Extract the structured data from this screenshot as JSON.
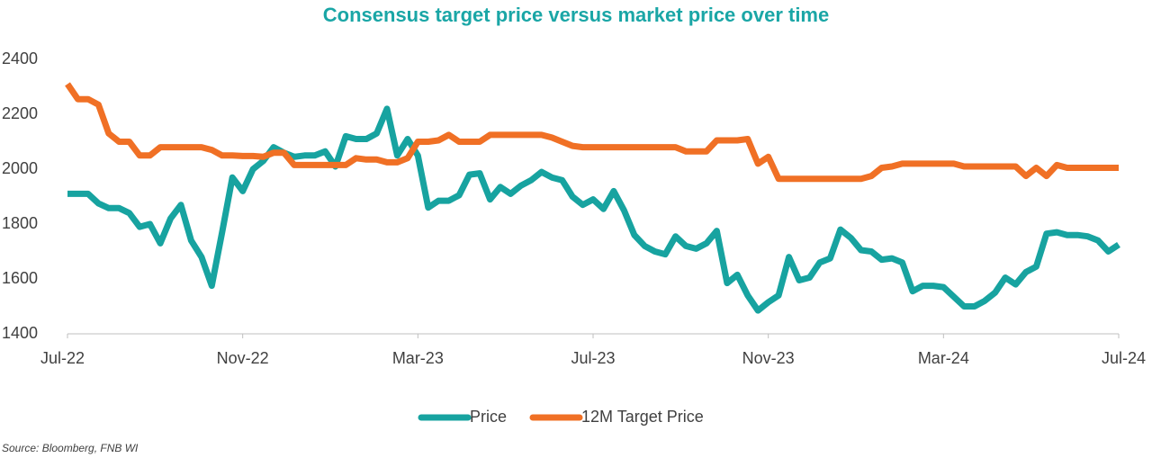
{
  "chart_data": {
    "type": "line",
    "title": "Consensus target price versus market price over time",
    "source": "Source: Bloomberg, FNB WI",
    "categories": [
      "Jul-22",
      null,
      null,
      null,
      null,
      null,
      null,
      null,
      null,
      null,
      null,
      null,
      null,
      null,
      null,
      null,
      null,
      "Nov-22",
      null,
      null,
      null,
      null,
      null,
      null,
      null,
      null,
      null,
      null,
      null,
      null,
      null,
      null,
      null,
      null,
      "Mar-23",
      null,
      null,
      null,
      null,
      null,
      null,
      null,
      null,
      null,
      null,
      null,
      null,
      null,
      null,
      null,
      null,
      "Jul-23",
      null,
      null,
      null,
      null,
      null,
      null,
      null,
      null,
      null,
      null,
      null,
      null,
      null,
      null,
      null,
      null,
      "Nov-23",
      null,
      null,
      null,
      null,
      null,
      null,
      null,
      null,
      null,
      null,
      null,
      null,
      null,
      null,
      null,
      null,
      "Mar-24",
      null,
      null,
      null,
      null,
      null,
      null,
      null,
      null,
      null,
      null,
      null,
      null,
      null,
      null,
      null,
      null,
      "Jul-24"
    ],
    "series": [
      {
        "name": "Price",
        "color": "#17a3a0",
        "values": [
          1910,
          1910,
          1910,
          1875,
          1858,
          1858,
          1840,
          1790,
          1800,
          1730,
          1820,
          1870,
          1740,
          1680,
          1575,
          1770,
          1970,
          1920,
          2000,
          2030,
          2080,
          2060,
          2045,
          2050,
          2050,
          2065,
          2010,
          2120,
          2110,
          2110,
          2130,
          2220,
          2050,
          2110,
          2050,
          1860,
          1885,
          1885,
          1905,
          1980,
          1985,
          1890,
          1935,
          1910,
          1940,
          1960,
          1990,
          1970,
          1960,
          1900,
          1870,
          1890,
          1855,
          1920,
          1850,
          1760,
          1720,
          1700,
          1690,
          1755,
          1720,
          1710,
          1730,
          1775,
          1585,
          1615,
          1540,
          1485,
          1515,
          1540,
          1680,
          1595,
          1605,
          1660,
          1675,
          1780,
          1750,
          1705,
          1700,
          1670,
          1675,
          1660,
          1555,
          1575,
          1575,
          1570,
          1535,
          1500,
          1500,
          1520,
          1550,
          1605,
          1580,
          1625,
          1645,
          1765,
          1770,
          1760,
          1760,
          1755,
          1740,
          1700,
          1725
        ]
      },
      {
        "name": "12M Target Price",
        "color": "#f07025",
        "values": [
          2310,
          2255,
          2255,
          2235,
          2130,
          2100,
          2100,
          2050,
          2050,
          2080,
          2080,
          2080,
          2080,
          2080,
          2070,
          2050,
          2050,
          2048,
          2048,
          2045,
          2060,
          2060,
          2015,
          2015,
          2015,
          2015,
          2015,
          2015,
          2040,
          2035,
          2035,
          2025,
          2025,
          2040,
          2100,
          2100,
          2105,
          2125,
          2100,
          2100,
          2100,
          2125,
          2125,
          2125,
          2125,
          2125,
          2125,
          2115,
          2100,
          2085,
          2080,
          2080,
          2080,
          2080,
          2080,
          2080,
          2080,
          2080,
          2080,
          2080,
          2065,
          2065,
          2065,
          2105,
          2105,
          2105,
          2110,
          2020,
          2045,
          1965,
          1965,
          1965,
          1965,
          1965,
          1965,
          1965,
          1965,
          1965,
          1975,
          2005,
          2010,
          2020,
          2020,
          2020,
          2020,
          2020,
          2020,
          2010,
          2010,
          2010,
          2010,
          2010,
          2010,
          1975,
          2005,
          1975,
          2015,
          2005,
          2005,
          2005,
          2005,
          2005,
          2005
        ]
      }
    ],
    "ylim": [
      1400,
      2400
    ],
    "yticks": [
      1400,
      1600,
      1800,
      2000,
      2200,
      2400
    ],
    "grid": false
  }
}
